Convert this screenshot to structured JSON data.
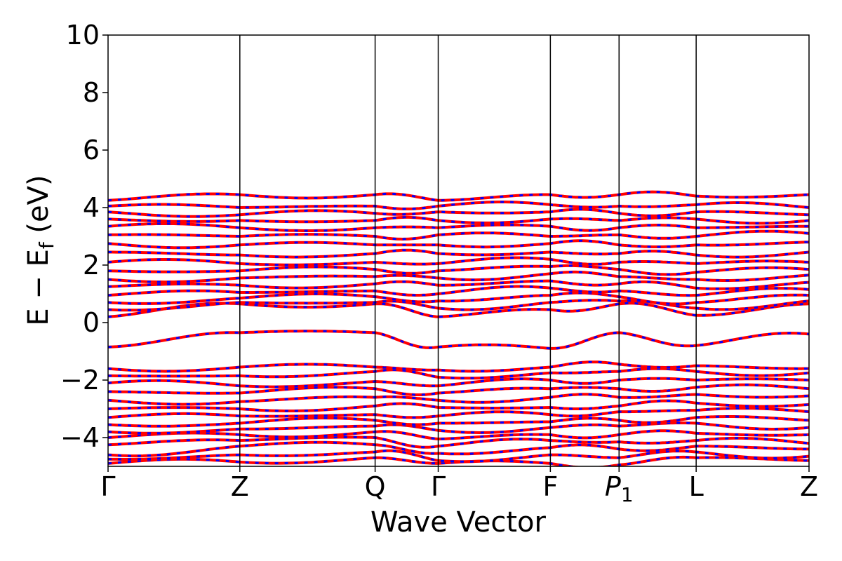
{
  "chart_data": {
    "type": "line",
    "title": "",
    "xlabel": "Wave Vector",
    "ylabel": "E − E",
    "ylabel_sub": "f",
    "ylabel_unit": " (eV)",
    "ylim": [
      -5,
      10
    ],
    "yticks": [
      {
        "value": 10,
        "label": "10"
      },
      {
        "value": 8,
        "label": "8"
      },
      {
        "value": 6,
        "label": "6"
      },
      {
        "value": 4,
        "label": "4"
      },
      {
        "value": 2,
        "label": "2"
      },
      {
        "value": 0,
        "label": "0"
      },
      {
        "value": -2,
        "label": "−2"
      },
      {
        "value": -4,
        "label": "−4"
      }
    ],
    "kpath": [
      {
        "label": "Γ",
        "pos": 0.0
      },
      {
        "label": "Z",
        "pos": 1.88
      },
      {
        "label": "Q",
        "pos": 3.81
      },
      {
        "label": "Γ",
        "pos": 4.71
      },
      {
        "label": "F",
        "pos": 6.31
      },
      {
        "label": "P",
        "sub": "1",
        "pos": 7.29,
        "italic": true
      },
      {
        "label": "L",
        "pos": 8.39
      },
      {
        "label": "Z",
        "pos": 10.0
      }
    ],
    "xlim": [
      0,
      10
    ],
    "grid": false,
    "series_colors": {
      "solid": "#ff0000",
      "dashed": "#0000ff"
    },
    "bands": [
      [
        -4.9,
        -4.85,
        -4.7,
        -4.9,
        -4.9,
        -4.95,
        -4.7,
        -4.8
      ],
      [
        -4.75,
        -4.6,
        -4.5,
        -4.8,
        -4.6,
        -4.7,
        -4.5,
        -4.65
      ],
      [
        -4.6,
        -4.3,
        -4.25,
        -4.55,
        -4.35,
        -4.4,
        -4.3,
        -4.4
      ],
      [
        -4.25,
        -4.1,
        -4.0,
        -4.3,
        -4.1,
        -4.15,
        -4.1,
        -4.2
      ],
      [
        -4.0,
        -3.9,
        -3.8,
        -4.05,
        -3.9,
        -3.9,
        -3.85,
        -3.9
      ],
      [
        -3.8,
        -3.7,
        -3.6,
        -3.75,
        -3.65,
        -3.6,
        -3.5,
        -3.65
      ],
      [
        -3.55,
        -3.5,
        -3.4,
        -3.5,
        -3.45,
        -3.4,
        -3.3,
        -3.4
      ],
      [
        -3.3,
        -3.25,
        -3.2,
        -3.25,
        -3.2,
        -3.1,
        -3.05,
        -3.1
      ],
      [
        -3.0,
        -3.0,
        -2.9,
        -2.95,
        -2.95,
        -2.9,
        -2.8,
        -2.85
      ],
      [
        -2.7,
        -2.75,
        -2.6,
        -2.7,
        -2.6,
        -2.6,
        -2.5,
        -2.55
      ],
      [
        -2.4,
        -2.45,
        -2.3,
        -2.45,
        -2.3,
        -2.3,
        -2.25,
        -2.3
      ],
      [
        -2.1,
        -2.2,
        -2.05,
        -2.2,
        -2.0,
        -2.0,
        -2.0,
        -2.0
      ],
      [
        -1.85,
        -1.85,
        -1.7,
        -1.9,
        -1.75,
        -1.7,
        -1.7,
        -1.75
      ],
      [
        -1.6,
        -1.55,
        -1.55,
        -1.65,
        -1.55,
        -1.45,
        -1.5,
        -1.6
      ],
      [
        -0.85,
        -0.35,
        -0.35,
        -0.85,
        -0.9,
        -0.35,
        -0.8,
        -0.4
      ],
      [
        0.2,
        0.65,
        0.65,
        0.2,
        0.45,
        0.65,
        0.25,
        0.65
      ],
      [
        0.45,
        0.7,
        0.7,
        0.5,
        0.7,
        0.75,
        0.5,
        0.75
      ],
      [
        0.7,
        0.85,
        0.9,
        0.75,
        0.95,
        0.9,
        0.7,
        0.95
      ],
      [
        0.95,
        1.05,
        1.1,
        1.0,
        1.2,
        1.1,
        0.95,
        1.15
      ],
      [
        1.25,
        1.3,
        1.35,
        1.3,
        1.45,
        1.35,
        1.2,
        1.4
      ],
      [
        1.5,
        1.55,
        1.6,
        1.55,
        1.7,
        1.6,
        1.5,
        1.65
      ],
      [
        1.8,
        1.8,
        1.85,
        1.8,
        1.95,
        1.85,
        1.75,
        1.85
      ],
      [
        2.1,
        2.05,
        2.1,
        2.05,
        2.2,
        2.1,
        2.05,
        2.1
      ],
      [
        2.45,
        2.35,
        2.4,
        2.4,
        2.45,
        2.4,
        2.35,
        2.45
      ],
      [
        2.75,
        2.7,
        2.7,
        2.7,
        2.75,
        2.7,
        2.7,
        2.8
      ],
      [
        3.05,
        3.0,
        3.0,
        3.05,
        3.0,
        3.05,
        3.0,
        3.1
      ],
      [
        3.35,
        3.3,
        3.3,
        3.3,
        3.35,
        3.3,
        3.3,
        3.35
      ],
      [
        3.6,
        3.55,
        3.55,
        3.55,
        3.6,
        3.55,
        3.6,
        3.55
      ],
      [
        3.85,
        3.75,
        3.8,
        3.85,
        3.85,
        3.8,
        3.85,
        3.75
      ],
      [
        4.05,
        4.0,
        4.05,
        4.05,
        4.1,
        4.05,
        4.1,
        4.0
      ],
      [
        4.25,
        4.45,
        4.45,
        4.25,
        4.45,
        4.45,
        4.4,
        4.45
      ]
    ]
  }
}
